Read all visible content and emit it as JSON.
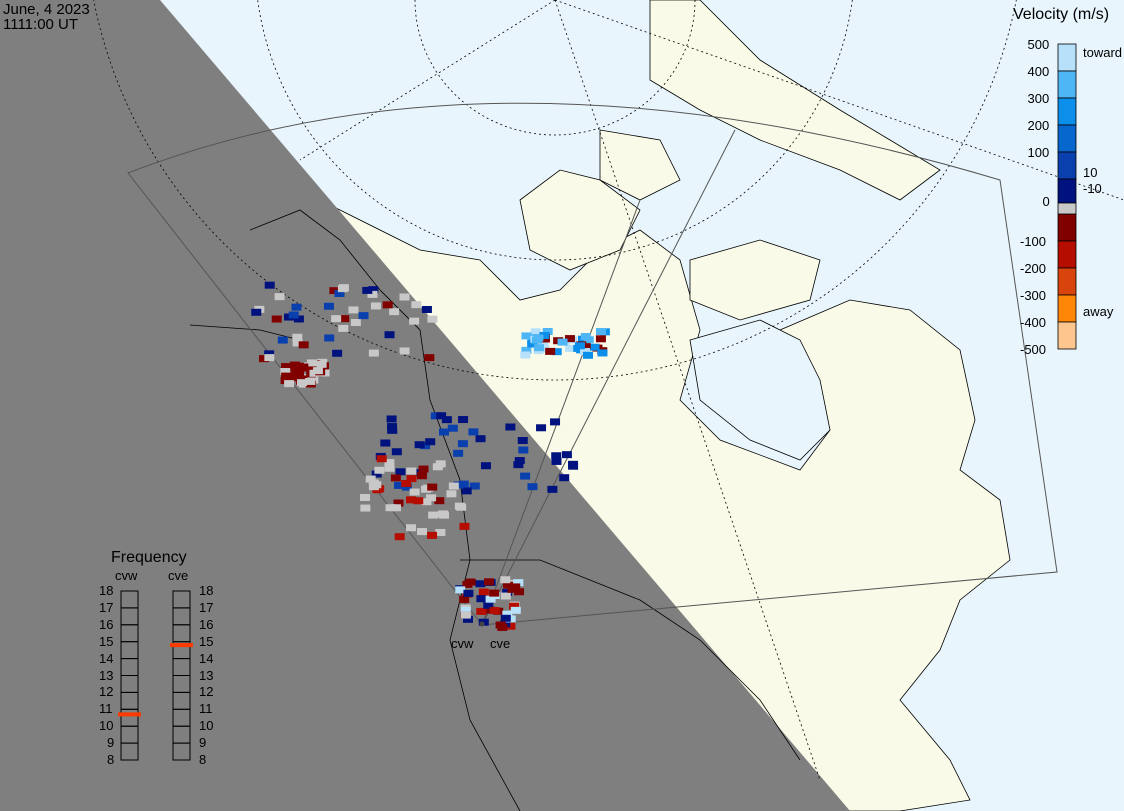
{
  "header": {
    "date": "June, 4 2023",
    "time": "1111:00 UT"
  },
  "colors": {
    "ocean": "#e8f5fd",
    "land_day": "#fafae8",
    "night": "#7f7f7f",
    "ground_scatter": "#c8c8c8"
  },
  "velocity_legend": {
    "title": "Velocity (m/s)",
    "ticks": [
      "500",
      "400",
      "300",
      "200",
      "100",
      "0",
      "-100",
      "-200",
      "-300",
      "-400",
      "-500"
    ],
    "toward_label": "toward",
    "away_label": "away",
    "gs_upper": "10",
    "gs_lower": "-10",
    "colors": [
      "#b7e1fb",
      "#4fb6f6",
      "#0b8fea",
      "#0867cf",
      "#0a3fae",
      "#00127e",
      "#800000",
      "#b50d00",
      "#d9430c",
      "#ff8606",
      "#fec68f"
    ]
  },
  "frequency_panel": {
    "title": "Frequency",
    "ticks": [
      "18",
      "17",
      "16",
      "15",
      "14",
      "13",
      "12",
      "11",
      "10",
      "9",
      "8"
    ],
    "radars": [
      {
        "name": "cvw",
        "frequency_mhz": 10.7
      },
      {
        "name": "cve",
        "frequency_mhz": 14.8
      }
    ],
    "marker_color": "#ff3a00"
  },
  "radar_sites": [
    {
      "name": "cvw"
    },
    {
      "name": "cve"
    }
  ]
}
